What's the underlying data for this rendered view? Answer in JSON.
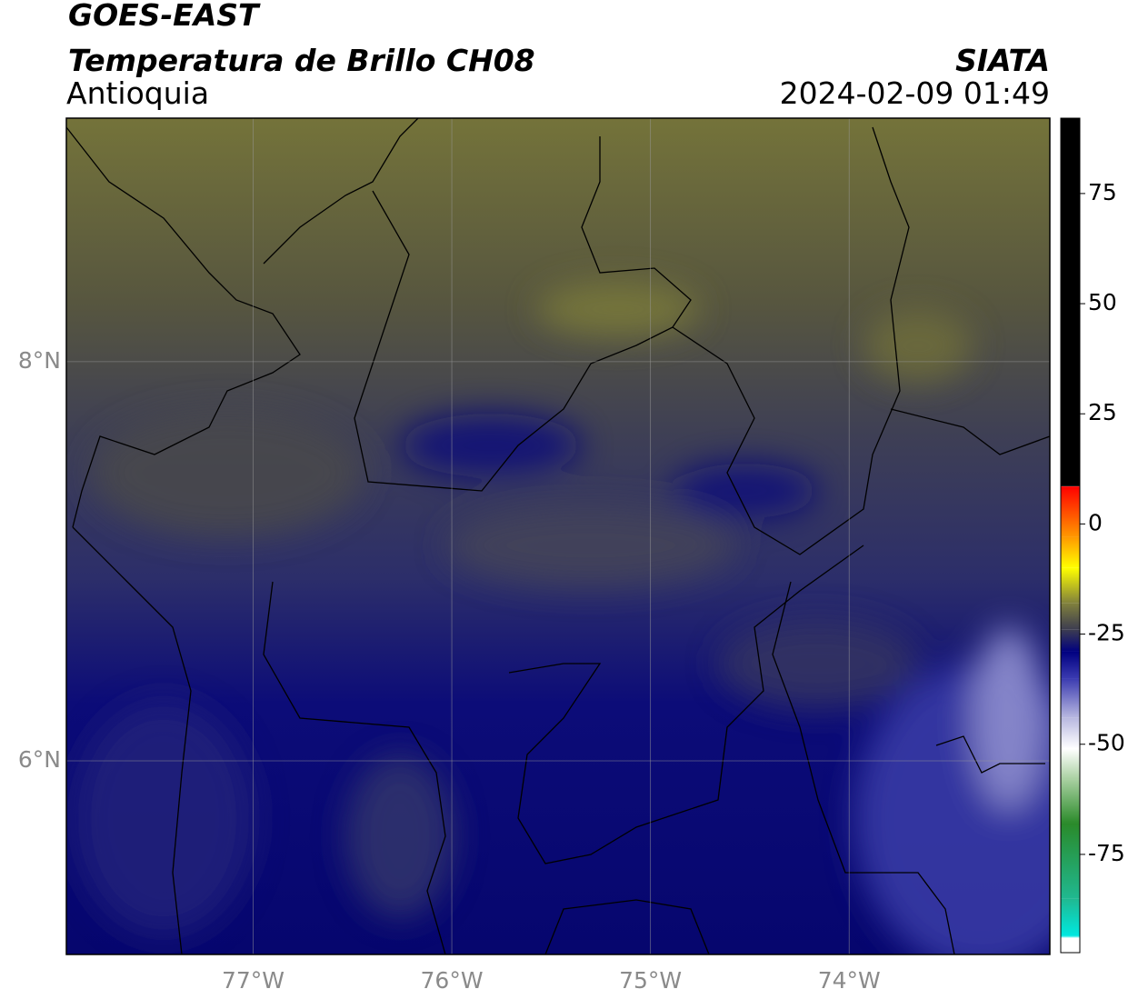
{
  "header": {
    "satellite": "GOES-EAST",
    "title": "Temperatura de Brillo CH08",
    "region": "Antioquia",
    "agency": "SIATA",
    "timestamp": "2024-02-09 01:49"
  },
  "chart_data": {
    "type": "map",
    "xlim": [
      -77.94,
      -72.99
    ],
    "ylim": [
      5.03,
      9.22
    ],
    "xticks": [
      {
        "value": -77,
        "label": "77°W"
      },
      {
        "value": -76,
        "label": "76°W"
      },
      {
        "value": -75,
        "label": "75°W"
      },
      {
        "value": -74,
        "label": "74°W"
      }
    ],
    "yticks": [
      {
        "value": 6,
        "label": "6°N"
      },
      {
        "value": 8,
        "label": "8°N"
      }
    ],
    "grid": true,
    "colorbar": {
      "lim": [
        -97.3,
        92.1
      ],
      "ticks": [
        -75,
        -50,
        -25,
        0,
        25,
        50,
        75
      ],
      "stops": [
        {
          "value": -97.3,
          "color": "#ffffff"
        },
        {
          "value": -94,
          "color": "#ffffff"
        },
        {
          "value": -93.5,
          "color": "#00e8e0"
        },
        {
          "value": -85,
          "color": "#20b890"
        },
        {
          "value": -68,
          "color": "#2a8a2a"
        },
        {
          "value": -58,
          "color": "#a8d0a0"
        },
        {
          "value": -51,
          "color": "#ffffff"
        },
        {
          "value": -44,
          "color": "#b8b8e0"
        },
        {
          "value": -35,
          "color": "#3a3ab0"
        },
        {
          "value": -29,
          "color": "#000080"
        },
        {
          "value": -24,
          "color": "#3c3c50"
        },
        {
          "value": -18,
          "color": "#80803c"
        },
        {
          "value": -10,
          "color": "#ffff00"
        },
        {
          "value": -3,
          "color": "#ff9900"
        },
        {
          "value": 8.5,
          "color": "#ff0000"
        },
        {
          "value": 8.6,
          "color": "#000000"
        },
        {
          "value": 92.1,
          "color": "#000000"
        }
      ]
    }
  }
}
